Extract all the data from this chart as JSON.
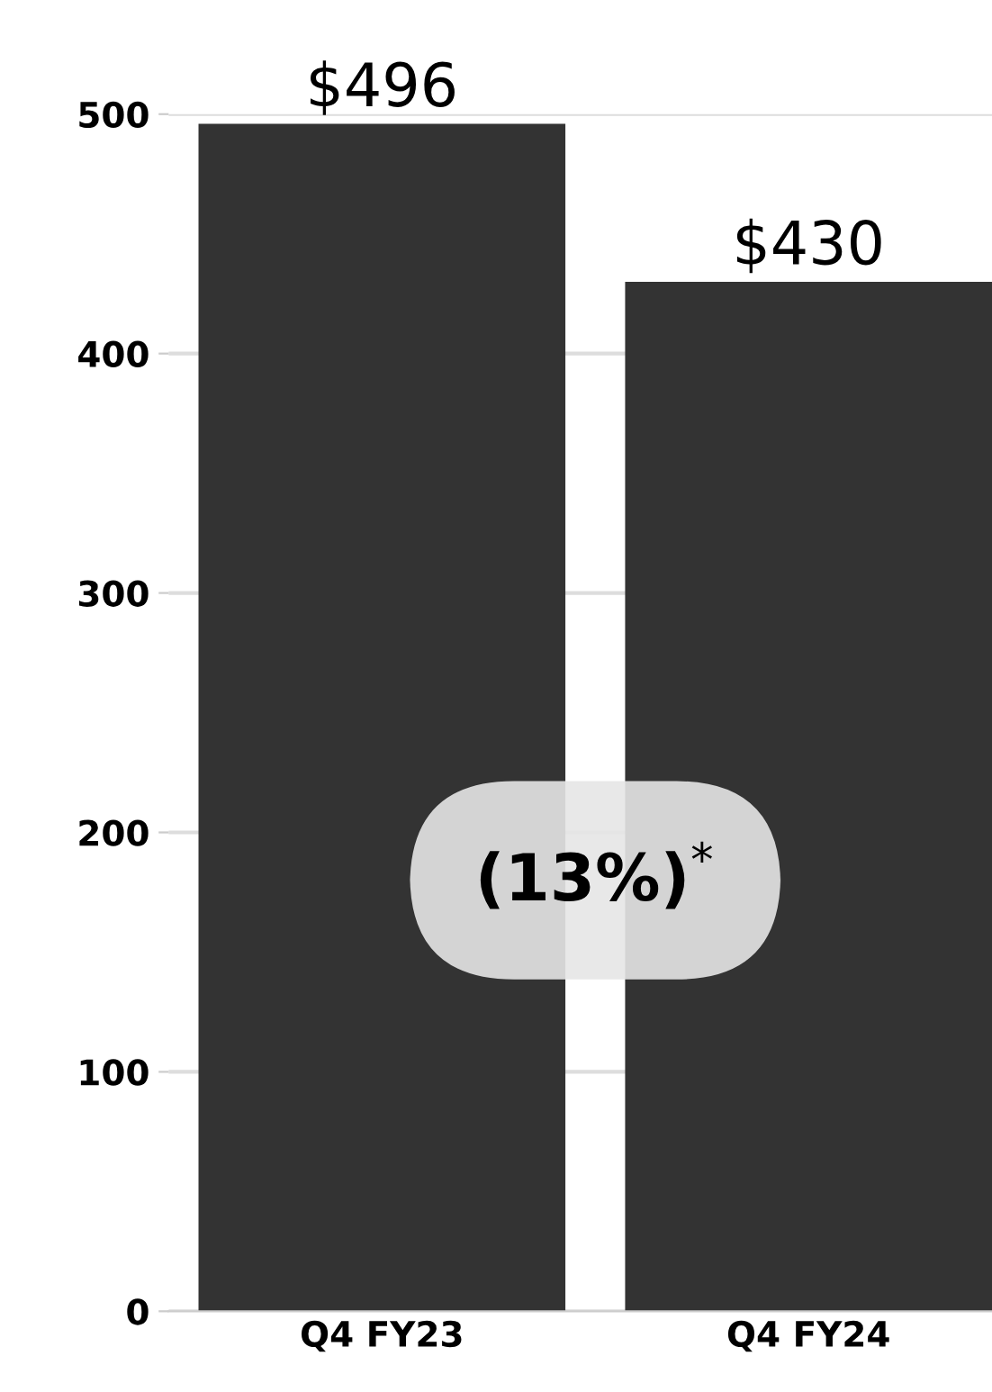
{
  "chart_data": {
    "type": "bar",
    "categories": [
      "Q4 FY23",
      "Q4 FY24"
    ],
    "values": [
      496,
      430
    ],
    "color": "#333333",
    "value_labels": [
      "$496",
      "$430"
    ],
    "ylim": [
      0,
      500
    ],
    "yticks": [
      0,
      100,
      200,
      300,
      400,
      500
    ],
    "grid": "y",
    "annotations": [
      "(13%)$^{*}$"
    ]
  }
}
